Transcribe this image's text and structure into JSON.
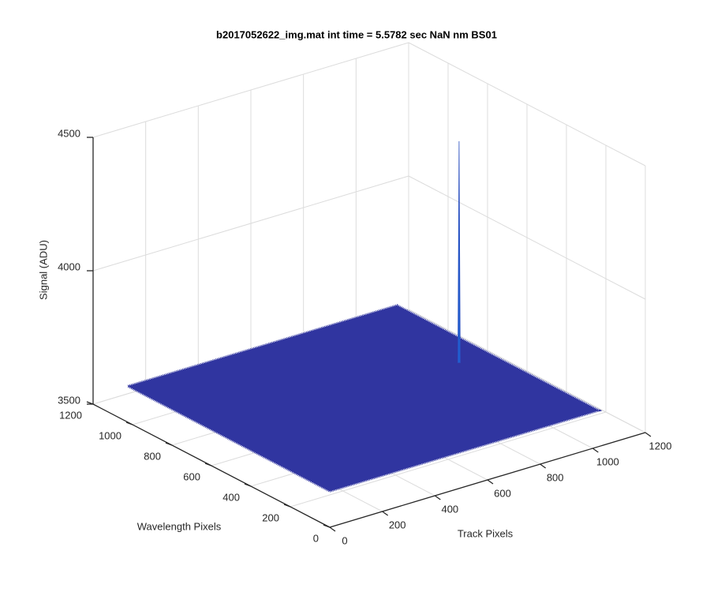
{
  "chart_data": {
    "type": "surface",
    "title": "b2017052622_img.mat int time = 5.5782 sec  NaN nm BS01",
    "xlabel": "Track Pixels",
    "ylabel": "Wavelength Pixels",
    "zlabel": "Signal (ADU)",
    "xlim": [
      0,
      1200
    ],
    "xticks": [
      0,
      200,
      400,
      600,
      800,
      1000,
      1200
    ],
    "ylim": [
      0,
      1200
    ],
    "yticks": [
      0,
      200,
      400,
      600,
      800,
      1000,
      1200
    ],
    "zlim": [
      3500,
      4500
    ],
    "zticks": [
      3500,
      4000,
      4500
    ],
    "grid": true,
    "surface": {
      "x_extent": 1024,
      "y_extent": 1024,
      "level": 3635,
      "color": "#3035a0"
    },
    "peak": {
      "x": 908,
      "y": 555,
      "z": 4465
    }
  }
}
